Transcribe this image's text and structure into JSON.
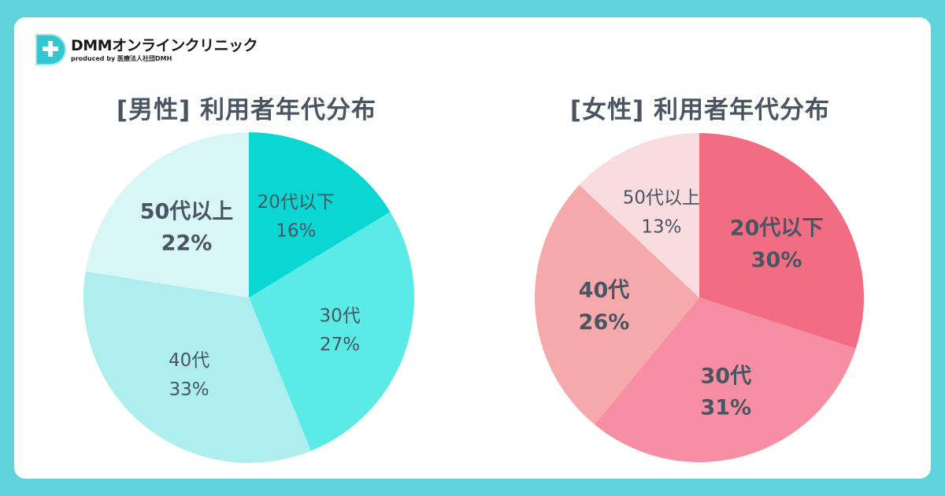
{
  "brand": {
    "name": "DMMオンラインクリニック",
    "tagline": "produced by 医療法人社団DMH"
  },
  "chart_data": [
    {
      "type": "pie",
      "title": "[男性] 利用者年代分布",
      "slices": [
        {
          "label": "20代以下",
          "value": 16,
          "pct": "16%",
          "color": "#0ad6d2",
          "emphasis": false
        },
        {
          "label": "30代",
          "value": 27,
          "pct": "27%",
          "color": "#5aebe6",
          "emphasis": false
        },
        {
          "label": "40代",
          "value": 33,
          "pct": "33%",
          "color": "#aeeeee",
          "emphasis": false
        },
        {
          "label": "50代以上",
          "value": 22,
          "pct": "22%",
          "color": "#d8f6f6",
          "emphasis": true
        }
      ]
    },
    {
      "type": "pie",
      "title": "[女性] 利用者年代分布",
      "slices": [
        {
          "label": "20代以下",
          "value": 30,
          "pct": "30%",
          "color": "#f26c82",
          "emphasis": true
        },
        {
          "label": "30代",
          "value": 31,
          "pct": "31%",
          "color": "#f78ea4",
          "emphasis": true
        },
        {
          "label": "40代",
          "value": 26,
          "pct": "26%",
          "color": "#f6a9aa",
          "emphasis": true
        },
        {
          "label": "50代以上",
          "value": 13,
          "pct": "13%",
          "color": "#f9dcdf",
          "emphasis": false
        }
      ]
    }
  ],
  "colors": {
    "background": "#5fd3db",
    "card": "#ffffff",
    "text": "#4a5563"
  }
}
